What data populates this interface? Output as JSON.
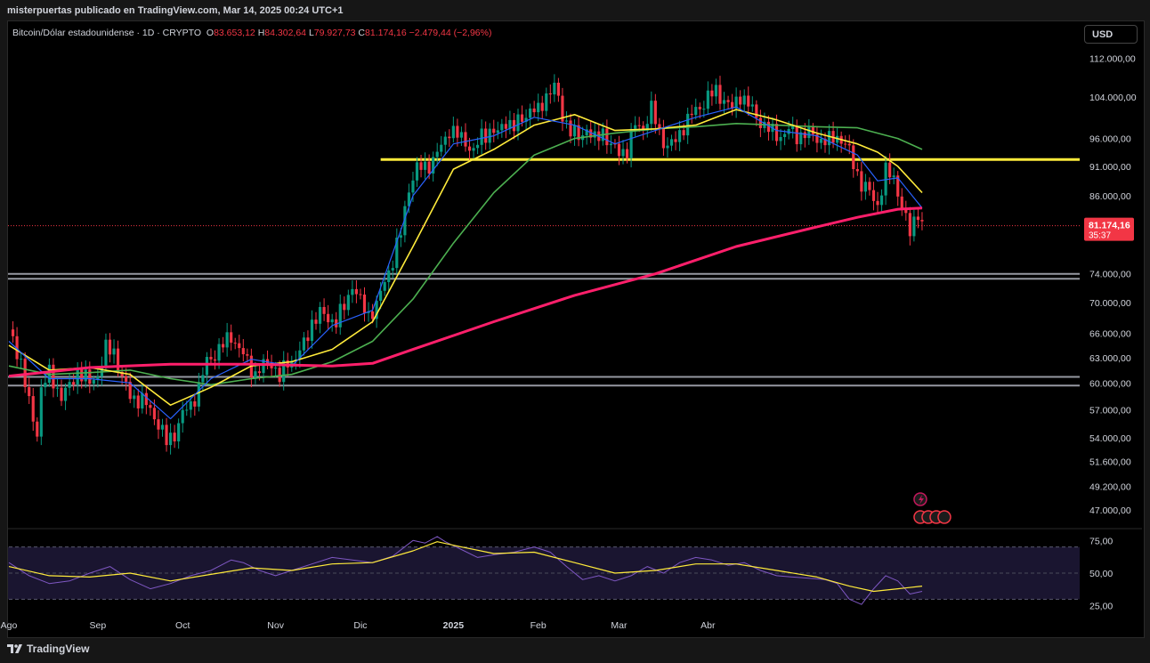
{
  "caption": "misterpuertas publicado en TradingView.com, Mar 14, 2025 00:24 UTC+1",
  "symbol": {
    "name": "Bitcoin/Dólar estadounidense · 1D · CRYPTO",
    "o_label": "O",
    "o": "83.653,12",
    "h_label": "H",
    "h": "84.302,64",
    "l_label": "L",
    "l": "79.927,73",
    "c_label": "C",
    "c": "81.174,16",
    "change": "−2.479,44 (−2,96%)"
  },
  "currency_button": "USD",
  "last_price": {
    "value": "81.174,16",
    "countdown": "35:37",
    "color": "#f23645"
  },
  "brand": "TradingView",
  "colors": {
    "background": "#000000",
    "up": "#089981",
    "down": "#f23645",
    "ma_short": "#2962ff",
    "ma_mid": "#ffeb3b",
    "ma_long": "#4caf50",
    "ma_200": "#ff1f6b",
    "resistance": "#ffeb3b",
    "support": "#9598a1",
    "rsi": "#7e57c2",
    "rsi_ma": "#ffeb3b"
  },
  "price_axis_labels": [
    "112.000,00",
    "104.000,00",
    "96.000,00",
    "91.000,00",
    "86.000,00",
    "74.000,00",
    "70.000,00",
    "66.000,00",
    "63.000,00",
    "60.000,00",
    "57.000,00",
    "54.000,00",
    "51.600,00",
    "49.200,00",
    "47.000,00"
  ],
  "rsi_axis_labels": [
    "75,00",
    "50,00",
    "25,00"
  ],
  "time_axis_labels": [
    "Ago",
    "Sep",
    "Oct",
    "Nov",
    "Dic",
    "2025",
    "Feb",
    "Mar",
    "Abr"
  ],
  "chart_data": {
    "type": "candlestick",
    "scale": "log",
    "ylim": [
      45500,
      117000
    ],
    "x_unit": "trading days since 2024-07-31",
    "x_range": [
      0,
      265
    ],
    "last_index": 226,
    "closes": [
      [
        0,
        66500
      ],
      [
        3,
        62500
      ],
      [
        5,
        57500
      ],
      [
        7,
        54500
      ],
      [
        8,
        59500
      ],
      [
        10,
        61000
      ],
      [
        13,
        58500
      ],
      [
        15,
        59500
      ],
      [
        17,
        61500
      ],
      [
        20,
        60000
      ],
      [
        22,
        61000
      ],
      [
        24,
        64000
      ],
      [
        26,
        63800
      ],
      [
        28,
        60500
      ],
      [
        30,
        58500
      ],
      [
        33,
        58000
      ],
      [
        35,
        57000
      ],
      [
        37,
        55500
      ],
      [
        39,
        53500
      ],
      [
        41,
        54500
      ],
      [
        43,
        56500
      ],
      [
        45,
        57500
      ],
      [
        47,
        59500
      ],
      [
        49,
        62500
      ],
      [
        51,
        63500
      ],
      [
        53,
        64500
      ],
      [
        55,
        65800
      ],
      [
        57,
        64000
      ],
      [
        59,
        62500
      ],
      [
        61,
        61000
      ],
      [
        63,
        62000
      ],
      [
        65,
        62500
      ],
      [
        67,
        60500
      ],
      [
        69,
        62500
      ],
      [
        71,
        63000
      ],
      [
        73,
        64500
      ],
      [
        75,
        67500
      ],
      [
        77,
        68500
      ],
      [
        79,
        68000
      ],
      [
        81,
        67500
      ],
      [
        83,
        69500
      ],
      [
        85,
        72500
      ],
      [
        87,
        70000
      ],
      [
        89,
        68500
      ],
      [
        91,
        69500
      ],
      [
        93,
        73000
      ],
      [
        95,
        76000
      ],
      [
        97,
        80000
      ],
      [
        99,
        87500
      ],
      [
        101,
        90500
      ],
      [
        103,
        91000
      ],
      [
        105,
        92000
      ],
      [
        107,
        94500
      ],
      [
        109,
        97800
      ],
      [
        111,
        96500
      ],
      [
        113,
        95500
      ],
      [
        115,
        93500
      ],
      [
        117,
        96500
      ],
      [
        119,
        97500
      ],
      [
        121,
        96800
      ],
      [
        123,
        99500
      ],
      [
        125,
        98000
      ],
      [
        127,
        99800
      ],
      [
        129,
        101500
      ],
      [
        131,
        101000
      ],
      [
        133,
        104500
      ],
      [
        135,
        106000
      ],
      [
        137,
        100500
      ],
      [
        139,
        97500
      ],
      [
        141,
        96000
      ],
      [
        143,
        98000
      ],
      [
        145,
        95500
      ],
      [
        147,
        97500
      ],
      [
        149,
        94500
      ],
      [
        151,
        93500
      ],
      [
        153,
        94000
      ],
      [
        155,
        98500
      ],
      [
        157,
        98000
      ],
      [
        159,
        101500
      ],
      [
        161,
        97000
      ],
      [
        163,
        94500
      ],
      [
        165,
        95500
      ],
      [
        167,
        98500
      ],
      [
        169,
        100500
      ],
      [
        171,
        102000
      ],
      [
        173,
        104000
      ],
      [
        175,
        105000
      ],
      [
        177,
        103500
      ],
      [
        179,
        101500
      ],
      [
        181,
        104500
      ],
      [
        183,
        102500
      ],
      [
        185,
        100000
      ],
      [
        187,
        98500
      ],
      [
        189,
        97000
      ],
      [
        191,
        96500
      ],
      [
        193,
        97500
      ],
      [
        195,
        96500
      ],
      [
        197,
        97000
      ],
      [
        199,
        96500
      ],
      [
        201,
        95800
      ],
      [
        203,
        95500
      ],
      [
        205,
        96500
      ],
      [
        207,
        95000
      ],
      [
        209,
        91500
      ],
      [
        211,
        88000
      ],
      [
        213,
        86500
      ],
      [
        215,
        84500
      ],
      [
        217,
        90000
      ],
      [
        219,
        89000
      ],
      [
        220,
        86800
      ],
      [
        221,
        84000
      ],
      [
        222,
        82000
      ],
      [
        223,
        80000
      ],
      [
        224,
        82000
      ],
      [
        225,
        83650
      ],
      [
        226,
        81174
      ]
    ],
    "indicators": {
      "ma_short": [
        [
          0,
          65000
        ],
        [
          10,
          60500
        ],
        [
          20,
          60500
        ],
        [
          30,
          60000
        ],
        [
          40,
          56000
        ],
        [
          50,
          60500
        ],
        [
          60,
          62800
        ],
        [
          70,
          62000
        ],
        [
          80,
          67000
        ],
        [
          90,
          69000
        ],
        [
          100,
          86000
        ],
        [
          110,
          95000
        ],
        [
          120,
          96500
        ],
        [
          130,
          100000
        ],
        [
          140,
          98500
        ],
        [
          150,
          95000
        ],
        [
          160,
          97500
        ],
        [
          170,
          100000
        ],
        [
          180,
          102000
        ],
        [
          190,
          97500
        ],
        [
          200,
          96500
        ],
        [
          210,
          93000
        ],
        [
          215,
          88500
        ],
        [
          220,
          89000
        ],
        [
          226,
          84000
        ]
      ],
      "ma_mid": [
        [
          0,
          64500
        ],
        [
          10,
          61500
        ],
        [
          20,
          61800
        ],
        [
          30,
          61000
        ],
        [
          40,
          57500
        ],
        [
          50,
          59500
        ],
        [
          60,
          62000
        ],
        [
          70,
          62500
        ],
        [
          80,
          64000
        ],
        [
          90,
          67500
        ],
        [
          100,
          78000
        ],
        [
          110,
          90500
        ],
        [
          120,
          94000
        ],
        [
          130,
          98500
        ],
        [
          140,
          100500
        ],
        [
          150,
          97500
        ],
        [
          160,
          97800
        ],
        [
          170,
          98500
        ],
        [
          180,
          101500
        ],
        [
          190,
          99500
        ],
        [
          200,
          97000
        ],
        [
          210,
          95000
        ],
        [
          215,
          93500
        ],
        [
          220,
          91000
        ],
        [
          226,
          86500
        ]
      ],
      "ma_long": [
        [
          0,
          62000
        ],
        [
          10,
          61000
        ],
        [
          20,
          61200
        ],
        [
          30,
          61500
        ],
        [
          40,
          60500
        ],
        [
          50,
          59800
        ],
        [
          60,
          60500
        ],
        [
          70,
          61000
        ],
        [
          80,
          62500
        ],
        [
          90,
          65000
        ],
        [
          100,
          70500
        ],
        [
          110,
          78500
        ],
        [
          120,
          86500
        ],
        [
          130,
          93000
        ],
        [
          140,
          96000
        ],
        [
          150,
          97000
        ],
        [
          160,
          97800
        ],
        [
          170,
          98200
        ],
        [
          180,
          98800
        ],
        [
          190,
          98500
        ],
        [
          200,
          98200
        ],
        [
          210,
          98000
        ],
        [
          215,
          97000
        ],
        [
          220,
          96000
        ],
        [
          226,
          94000
        ]
      ],
      "ma_200": [
        [
          0,
          60800
        ],
        [
          20,
          61800
        ],
        [
          40,
          62200
        ],
        [
          60,
          62200
        ],
        [
          80,
          62000
        ],
        [
          90,
          62300
        ],
        [
          100,
          64000
        ],
        [
          120,
          67500
        ],
        [
          140,
          71000
        ],
        [
          160,
          74000
        ],
        [
          180,
          78000
        ],
        [
          200,
          81000
        ],
        [
          210,
          82500
        ],
        [
          220,
          83800
        ],
        [
          226,
          84000
        ]
      ],
      "resistance": 92200,
      "supports": [
        74000,
        73300,
        60700,
        59700
      ]
    },
    "rsi": {
      "ylim": [
        20,
        82
      ],
      "levels": [
        70,
        50,
        30
      ],
      "rsi": [
        [
          0,
          58
        ],
        [
          5,
          48
        ],
        [
          10,
          42
        ],
        [
          15,
          44
        ],
        [
          20,
          50
        ],
        [
          25,
          55
        ],
        [
          30,
          45
        ],
        [
          35,
          38
        ],
        [
          40,
          42
        ],
        [
          45,
          48
        ],
        [
          50,
          52
        ],
        [
          55,
          60
        ],
        [
          58,
          58
        ],
        [
          62,
          52
        ],
        [
          66,
          48
        ],
        [
          70,
          52
        ],
        [
          75,
          57
        ],
        [
          80,
          62
        ],
        [
          85,
          60
        ],
        [
          90,
          58
        ],
        [
          95,
          63
        ],
        [
          100,
          75
        ],
        [
          103,
          73
        ],
        [
          106,
          78
        ],
        [
          108,
          74
        ],
        [
          112,
          68
        ],
        [
          116,
          62
        ],
        [
          120,
          64
        ],
        [
          125,
          66
        ],
        [
          130,
          70
        ],
        [
          134,
          66
        ],
        [
          138,
          55
        ],
        [
          142,
          45
        ],
        [
          146,
          48
        ],
        [
          150,
          44
        ],
        [
          154,
          48
        ],
        [
          158,
          55
        ],
        [
          162,
          50
        ],
        [
          166,
          58
        ],
        [
          170,
          62
        ],
        [
          174,
          60
        ],
        [
          178,
          56
        ],
        [
          182,
          58
        ],
        [
          186,
          52
        ],
        [
          190,
          48
        ],
        [
          194,
          47
        ],
        [
          198,
          46
        ],
        [
          202,
          45
        ],
        [
          205,
          42
        ],
        [
          208,
          30
        ],
        [
          211,
          26
        ],
        [
          214,
          38
        ],
        [
          217,
          48
        ],
        [
          220,
          44
        ],
        [
          223,
          34
        ],
        [
          226,
          36
        ]
      ],
      "rsi_ma": [
        [
          0,
          55
        ],
        [
          10,
          48
        ],
        [
          20,
          47
        ],
        [
          30,
          50
        ],
        [
          40,
          44
        ],
        [
          50,
          49
        ],
        [
          60,
          54
        ],
        [
          70,
          52
        ],
        [
          80,
          57
        ],
        [
          90,
          58
        ],
        [
          100,
          67
        ],
        [
          106,
          74
        ],
        [
          112,
          70
        ],
        [
          120,
          65
        ],
        [
          130,
          66
        ],
        [
          140,
          58
        ],
        [
          150,
          50
        ],
        [
          160,
          52
        ],
        [
          170,
          57
        ],
        [
          180,
          57
        ],
        [
          190,
          52
        ],
        [
          200,
          47
        ],
        [
          208,
          40
        ],
        [
          214,
          36
        ],
        [
          220,
          38
        ],
        [
          226,
          40
        ]
      ]
    }
  }
}
